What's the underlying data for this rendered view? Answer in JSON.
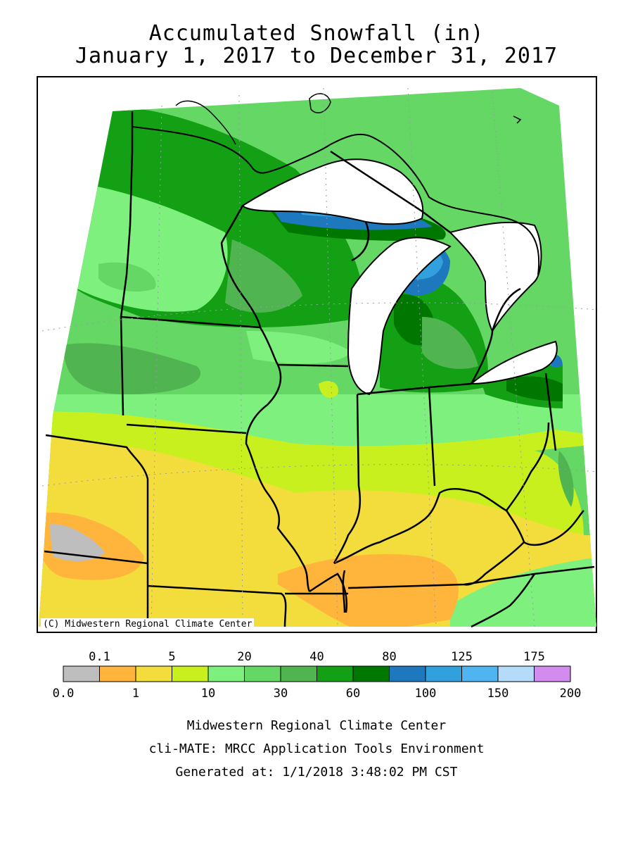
{
  "header": {
    "title": "Accumulated Snowfall (in)",
    "subtitle": "January 1, 2017 to December 31, 2017"
  },
  "map": {
    "credit": "(C) Midwestern Regional Climate Center",
    "lake_color": "#ffffff",
    "border_color": "#000000"
  },
  "legend": {
    "top_labels": [
      "0.1",
      "5",
      "20",
      "40",
      "80",
      "125",
      "175"
    ],
    "bottom_labels": [
      "0.0",
      "1",
      "10",
      "30",
      "60",
      "100",
      "150",
      "200"
    ],
    "colors": [
      "#bebebe",
      "#ffb43c",
      "#f2dd3c",
      "#c8f01e",
      "#7df07d",
      "#64d764",
      "#50b450",
      "#14a014",
      "#007800",
      "#1e78be",
      "#32a0dc",
      "#50b4f0",
      "#b4dcf8",
      "#d28cf0"
    ]
  },
  "footer": {
    "line1": "Midwestern Regional Climate Center",
    "line2": "cli-MATE: MRCC Application Tools Environment",
    "line3": "Generated at: 1/1/2018 3:48:02 PM CST"
  }
}
